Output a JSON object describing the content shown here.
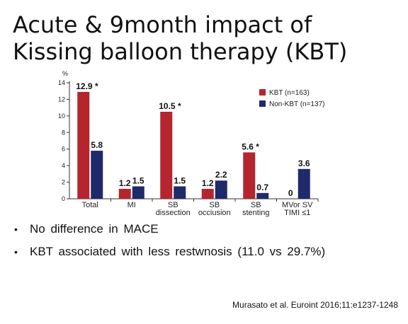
{
  "slide": {
    "title_line1": "Acute & 9month impact of",
    "title_line2": "Kissing balloon therapy (KBT)",
    "bullets": [
      "No  difference  in  MACE",
      "KBT  associated  with less restwnosis (11.0 vs 29.7%)"
    ],
    "citation": "Murasato et al. Euroint 2016;11:e1237-1248"
  },
  "chart_data": {
    "type": "bar",
    "ylabel": "%",
    "ylim": [
      0,
      14
    ],
    "yticks": [
      0,
      2,
      4,
      6,
      8,
      10,
      12,
      14
    ],
    "categories": [
      [
        "Total"
      ],
      [
        "MI"
      ],
      [
        "SB",
        "dissection"
      ],
      [
        "SB",
        "occiusion"
      ],
      [
        "SB",
        "stenting"
      ],
      [
        "MVor SV",
        "TIMI ≤1"
      ]
    ],
    "series": [
      {
        "name": "KBT (n=163)",
        "color": "#b5252d",
        "values": [
          12.9,
          1.2,
          10.5,
          1.2,
          5.6,
          0
        ],
        "labels": [
          "12.9",
          "1.2",
          "10.5",
          "1.2",
          "5.6",
          "0"
        ]
      },
      {
        "name": "Non-KBT (n=137)",
        "color": "#1f2a6b",
        "values": [
          5.8,
          1.5,
          1.5,
          2.2,
          0.7,
          3.6
        ],
        "labels": [
          "5.8",
          "1.5",
          "1.5",
          "2.2",
          "0.7",
          "3.6"
        ]
      }
    ],
    "significance_marker": "*",
    "significant_categories": [
      0,
      2,
      4
    ],
    "grid": false,
    "legend_position": "top-right"
  }
}
